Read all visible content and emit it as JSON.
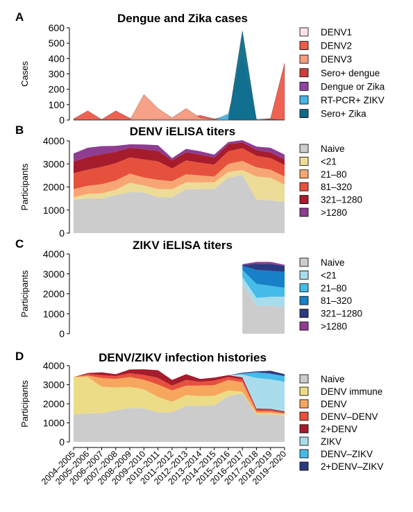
{
  "x_categories": [
    "2004–2005",
    "2005–2006",
    "2006–2007",
    "2007–2008",
    "2008–2009",
    "2009–2010",
    "2010–2011",
    "2011–2012",
    "2012–2013",
    "2013–2014",
    "2014–2015",
    "2015–2016",
    "2016–2017",
    "2017–2018",
    "2018–2019",
    "2019–2020"
  ],
  "chart_data": [
    {
      "type": "area",
      "panel_letter": "A",
      "title": "Dengue and Zika cases",
      "ylabel": "Cases",
      "ylim": [
        0,
        600
      ],
      "yticks": [
        0,
        100,
        200,
        300,
        400,
        500,
        600
      ],
      "stacked": false,
      "legend_position": "right",
      "series": [
        {
          "name": "DENV1",
          "color": "#fbe3e3",
          "values": [
            5,
            18,
            4,
            10,
            5,
            4,
            6,
            2,
            65,
            10,
            2,
            1,
            0,
            0,
            0,
            0
          ]
        },
        {
          "name": "DENV2",
          "color": "#ed5a49",
          "values": [
            8,
            60,
            4,
            60,
            12,
            8,
            14,
            12,
            15,
            30,
            8,
            25,
            30,
            3,
            10,
            370
          ]
        },
        {
          "name": "DENV3",
          "color": "#f59c82",
          "values": [
            0,
            0,
            0,
            0,
            0,
            165,
            75,
            15,
            75,
            15,
            3,
            1,
            0,
            0,
            0,
            0
          ]
        },
        {
          "name": "Sero+ dengue",
          "color": "#cf3d3d",
          "values": [
            0,
            0,
            0,
            0,
            0,
            0,
            0,
            0,
            0,
            0,
            0,
            0,
            15,
            5,
            5,
            0
          ]
        },
        {
          "name": "Dengue or Zika",
          "color": "#8e44a0",
          "values": [
            0,
            0,
            0,
            0,
            0,
            0,
            0,
            0,
            0,
            0,
            0,
            0,
            0,
            0,
            0,
            0
          ]
        },
        {
          "name": "RT-PCR+ ZIKV",
          "color": "#48b5e5",
          "values": [
            0,
            0,
            0,
            0,
            0,
            0,
            0,
            0,
            0,
            0,
            0,
            40,
            410,
            5,
            2,
            0
          ]
        },
        {
          "name": "Sero+ Zika",
          "color": "#0e6a8a",
          "values": [
            0,
            0,
            0,
            0,
            0,
            0,
            0,
            0,
            0,
            0,
            0,
            0,
            580,
            0,
            0,
            0
          ]
        }
      ]
    },
    {
      "type": "area",
      "panel_letter": "B",
      "title": "DENV iELISA titers",
      "ylabel": "Participants",
      "ylim": [
        0,
        4000
      ],
      "yticks": [
        0,
        1000,
        2000,
        3000,
        4000
      ],
      "stacked": true,
      "legend_position": "right",
      "series": [
        {
          "name": "Naive",
          "color": "#cccccc",
          "values": [
            1450,
            1500,
            1500,
            1650,
            1780,
            1760,
            1560,
            1550,
            1900,
            1900,
            1920,
            2400,
            2530,
            1450,
            1420,
            1350
          ]
        },
        {
          "name": "<21",
          "color": "#ecdc98",
          "values": [
            100,
            200,
            220,
            230,
            400,
            300,
            350,
            350,
            300,
            300,
            280,
            250,
            200,
            1000,
            980,
            750
          ]
        },
        {
          "name": "21–80",
          "color": "#f7a673",
          "values": [
            350,
            350,
            400,
            400,
            400,
            350,
            400,
            350,
            350,
            300,
            250,
            350,
            400,
            400,
            350,
            350
          ]
        },
        {
          "name": "81–320",
          "color": "#e6513d",
          "values": [
            700,
            700,
            750,
            750,
            700,
            780,
            800,
            550,
            600,
            550,
            520,
            550,
            550,
            500,
            500,
            500
          ]
        },
        {
          "name": "321–1280",
          "color": "#a61c2c",
          "values": [
            500,
            550,
            550,
            500,
            420,
            450,
            450,
            350,
            350,
            350,
            300,
            300,
            250,
            250,
            250,
            250
          ]
        },
        {
          "name": ">1280",
          "color": "#8e3d91",
          "values": [
            350,
            400,
            350,
            250,
            150,
            200,
            250,
            100,
            150,
            150,
            130,
            100,
            100,
            150,
            200,
            200
          ]
        }
      ]
    },
    {
      "type": "area",
      "panel_letter": "C",
      "title": "ZIKV iELISA titers",
      "ylabel": "Participants",
      "ylim": [
        0,
        4000
      ],
      "yticks": [
        0,
        1000,
        2000,
        3000,
        4000
      ],
      "stacked": true,
      "legend_position": "right",
      "x_start_index": 12,
      "series": [
        {
          "name": "Naive",
          "color": "#cccccc",
          "values": [
            2500,
            1400,
            1400,
            1350
          ]
        },
        {
          "name": "<21",
          "color": "#a9dceb",
          "values": [
            350,
            400,
            450,
            500
          ]
        },
        {
          "name": "21–80",
          "color": "#45bbea",
          "values": [
            350,
            700,
            550,
            450
          ]
        },
        {
          "name": "81–320",
          "color": "#1780c6",
          "values": [
            200,
            700,
            750,
            800
          ]
        },
        {
          "name": "321–1280",
          "color": "#2c3a80",
          "values": [
            50,
            300,
            350,
            300
          ]
        },
        {
          "name": ">1280",
          "color": "#8e3d91",
          "values": [
            30,
            100,
            100,
            50
          ]
        }
      ]
    },
    {
      "type": "area",
      "panel_letter": "D",
      "title": "DENV/ZIKV infection histories",
      "ylabel": "Participants",
      "ylim": [
        0,
        4000
      ],
      "yticks": [
        0,
        1000,
        2000,
        3000,
        4000
      ],
      "stacked": true,
      "legend_position": "right",
      "series": [
        {
          "name": "Naive",
          "color": "#cccccc",
          "values": [
            1450,
            1500,
            1500,
            1650,
            1780,
            1760,
            1560,
            1550,
            1900,
            1900,
            1920,
            2400,
            2530,
            1450,
            1450,
            1400
          ]
        },
        {
          "name": "DENV immune",
          "color": "#ecdc88",
          "values": [
            1950,
            1900,
            1400,
            1200,
            1100,
            1000,
            800,
            550,
            550,
            500,
            500,
            300,
            100,
            50,
            50,
            50
          ]
        },
        {
          "name": "DENV",
          "color": "#f7a65e",
          "values": [
            0,
            80,
            450,
            450,
            520,
            500,
            650,
            600,
            500,
            550,
            550,
            550,
            500,
            100,
            100,
            50
          ]
        },
        {
          "name": "DENV–DENV",
          "color": "#e6513d",
          "values": [
            0,
            80,
            150,
            150,
            200,
            250,
            350,
            250,
            300,
            200,
            250,
            150,
            150,
            100,
            80,
            50
          ]
        },
        {
          "name": "2+DENV",
          "color": "#a61c2c",
          "values": [
            0,
            50,
            150,
            100,
            200,
            300,
            400,
            300,
            300,
            150,
            150,
            100,
            100,
            50,
            50,
            50
          ]
        },
        {
          "name": "ZIKV",
          "color": "#a9dceb",
          "values": [
            0,
            0,
            0,
            0,
            0,
            0,
            0,
            0,
            0,
            0,
            0,
            0,
            150,
            1600,
            1550,
            1550
          ]
        },
        {
          "name": "DENV–ZIKV",
          "color": "#45bbea",
          "values": [
            0,
            0,
            0,
            0,
            0,
            0,
            0,
            0,
            0,
            0,
            0,
            0,
            50,
            300,
            300,
            300
          ]
        },
        {
          "name": "2+DENV–ZIKV",
          "color": "#2c3a80",
          "values": [
            0,
            0,
            0,
            0,
            0,
            0,
            0,
            0,
            0,
            0,
            0,
            0,
            50,
            50,
            150,
            100
          ]
        }
      ]
    }
  ]
}
